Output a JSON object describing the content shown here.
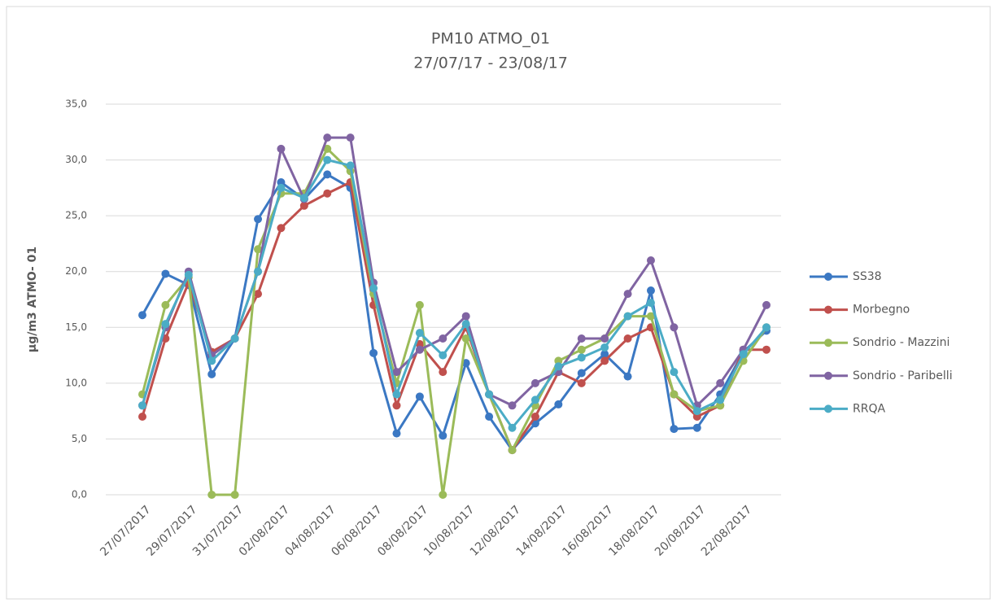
{
  "chart_data": {
    "type": "line",
    "title": "PM10 ATMO_01",
    "subtitle": "27/07/17 - 23/08/17",
    "y_label": "µg/m3 ATMO- 01",
    "categories": [
      "27/07/2017",
      null,
      "29/07/2017",
      null,
      "31/07/2017",
      null,
      "02/08/2017",
      null,
      "04/08/2017",
      null,
      "06/08/2017",
      null,
      "08/08/2017",
      null,
      "10/08/2017",
      null,
      "12/08/2017",
      null,
      "14/08/2017",
      null,
      "16/08/2017",
      null,
      "18/08/2017",
      null,
      "20/08/2017",
      null,
      "22/08/2017",
      null
    ],
    "series": [
      {
        "name": "SS38",
        "color": "#3b78c3",
        "values": [
          16.1,
          19.8,
          18.8,
          10.8,
          14.0,
          24.7,
          28.0,
          26.5,
          28.7,
          27.5,
          12.7,
          5.5,
          8.8,
          5.3,
          11.8,
          7.0,
          4.0,
          6.4,
          8.1,
          10.9,
          12.6,
          10.6,
          18.3,
          5.9,
          6.0,
          9.0,
          12.8,
          14.7
        ]
      },
      {
        "name": "Morbegno",
        "color": "#c0504d",
        "values": [
          7.0,
          14.0,
          19.0,
          12.8,
          14.0,
          18.0,
          23.9,
          25.9,
          27.0,
          28.0,
          17.0,
          8.0,
          13.5,
          11.0,
          15.0,
          9.0,
          4.0,
          7.0,
          11.0,
          10.0,
          12.0,
          14.0,
          15.0,
          9.0,
          7.0,
          8.0,
          13.0,
          13.0
        ]
      },
      {
        "name": "Sondrio - Mazzini",
        "color": "#9bbb59",
        "values": [
          9.0,
          17.0,
          19.5,
          0,
          0,
          22.0,
          27.0,
          27.0,
          31.0,
          29.0,
          18.0,
          10.0,
          17.0,
          0,
          14.0,
          9.0,
          4.0,
          8.0,
          12.0,
          13.0,
          14.0,
          16.0,
          16.0,
          9.0,
          7.5,
          8.0,
          12.0,
          15.0
        ]
      },
      {
        "name": "Sondrio - Paribelli",
        "color": "#8064a2",
        "values": [
          8.0,
          15.0,
          20.0,
          12.5,
          14.0,
          20.0,
          31.0,
          26.5,
          32.0,
          32.0,
          19.0,
          11.0,
          13.0,
          14.0,
          16.0,
          9.0,
          8.0,
          10.0,
          11.0,
          14.0,
          14.0,
          18.0,
          21.0,
          15.0,
          8.0,
          10.0,
          13.0,
          17.0
        ]
      },
      {
        "name": "RRQA",
        "color": "#4bacc6",
        "values": [
          8.0,
          15.3,
          19.7,
          12.0,
          14.0,
          20.0,
          27.5,
          26.6,
          30.0,
          29.5,
          18.5,
          9.0,
          14.5,
          12.5,
          15.3,
          9.0,
          6.0,
          8.5,
          11.5,
          12.3,
          13.2,
          16.0,
          17.2,
          11.0,
          7.5,
          8.5,
          12.6,
          15.0
        ]
      }
    ],
    "ylim": [
      0,
      35
    ],
    "yticks": [
      {
        "value": 0,
        "label": "0,0"
      },
      {
        "value": 5,
        "label": "5,0"
      },
      {
        "value": 10,
        "label": "10,0"
      },
      {
        "value": 15,
        "label": "15,0"
      },
      {
        "value": 20,
        "label": "20,0"
      },
      {
        "value": 25,
        "label": "25,0"
      },
      {
        "value": 30,
        "label": "30,0"
      },
      {
        "value": 35,
        "label": "35,0"
      }
    ],
    "grid": true,
    "legend": "right"
  }
}
